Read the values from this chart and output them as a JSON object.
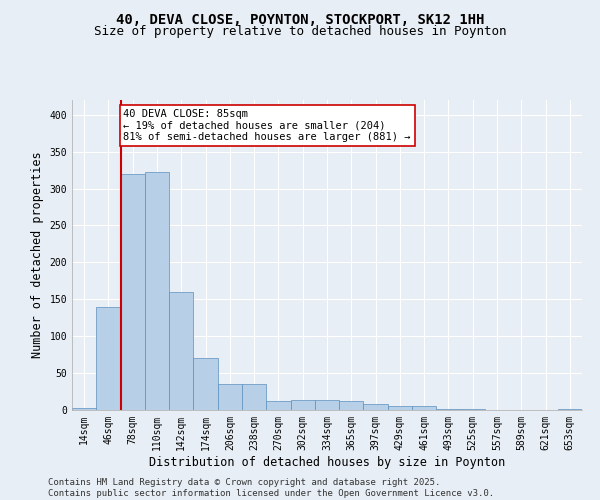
{
  "title_line1": "40, DEVA CLOSE, POYNTON, STOCKPORT, SK12 1HH",
  "title_line2": "Size of property relative to detached houses in Poynton",
  "xlabel": "Distribution of detached houses by size in Poynton",
  "ylabel": "Number of detached properties",
  "bar_labels": [
    "14sqm",
    "46sqm",
    "78sqm",
    "110sqm",
    "142sqm",
    "174sqm",
    "206sqm",
    "238sqm",
    "270sqm",
    "302sqm",
    "334sqm",
    "365sqm",
    "397sqm",
    "429sqm",
    "461sqm",
    "493sqm",
    "525sqm",
    "557sqm",
    "589sqm",
    "621sqm",
    "653sqm"
  ],
  "bar_values": [
    3,
    139,
    320,
    323,
    160,
    70,
    35,
    35,
    12,
    14,
    14,
    12,
    8,
    5,
    5,
    1,
    1,
    0,
    0,
    0,
    2
  ],
  "bar_color": "#b8cfe8",
  "bar_edge_color": "#5a8fc0",
  "vline_color": "#cc0000",
  "vline_x_index": 2,
  "annotation_text_line1": "40 DEVA CLOSE: 85sqm",
  "annotation_text_line2": "← 19% of detached houses are smaller (204)",
  "annotation_text_line3": "81% of semi-detached houses are larger (881) →",
  "annotation_box_color": "#ffffff",
  "annotation_box_edge_color": "#cc0000",
  "ylim": [
    0,
    420
  ],
  "yticks": [
    0,
    50,
    100,
    150,
    200,
    250,
    300,
    350,
    400
  ],
  "footer_line1": "Contains HM Land Registry data © Crown copyright and database right 2025.",
  "footer_line2": "Contains public sector information licensed under the Open Government Licence v3.0.",
  "background_color": "#e8eef5",
  "plot_background_color": "#e8eef5",
  "grid_color": "#ffffff",
  "title_fontsize": 10,
  "subtitle_fontsize": 9,
  "axis_label_fontsize": 8.5,
  "tick_fontsize": 7,
  "footer_fontsize": 6.5,
  "annotation_fontsize": 7.5
}
